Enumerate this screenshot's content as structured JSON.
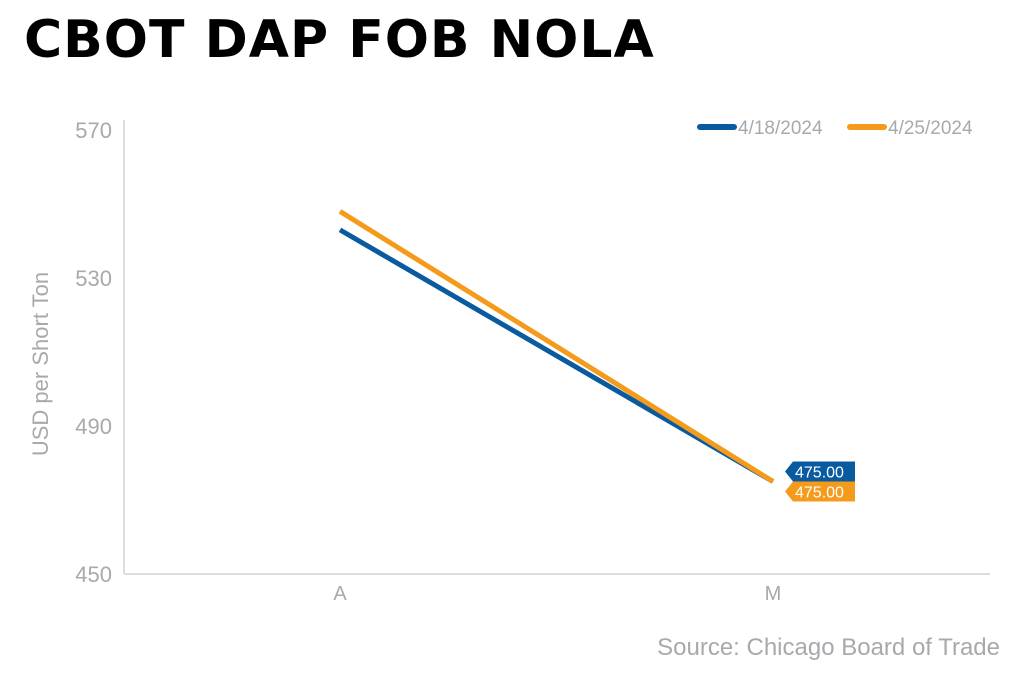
{
  "title": "CBOT DAP FOB NOLA",
  "source": "Source: Chicago Board of Trade",
  "chart_data": {
    "type": "line",
    "title": "CBOT DAP FOB NOLA",
    "xlabel": "",
    "ylabel": "USD per Short Ton",
    "categories": [
      "A",
      "M"
    ],
    "ylim": [
      450,
      570
    ],
    "yticks": [
      450,
      490,
      530,
      570
    ],
    "grid": false,
    "legend_position": "top-right",
    "series": [
      {
        "name": "4/18/2024",
        "values": [
          543,
          475
        ],
        "color": "#0a5aa0",
        "end_label": "475.00"
      },
      {
        "name": "4/25/2024",
        "values": [
          548,
          475
        ],
        "color": "#f49b1c",
        "end_label": "475.00"
      }
    ],
    "axis_color": "#d0d2d3",
    "tick_label_color": "#a7a9ac"
  }
}
